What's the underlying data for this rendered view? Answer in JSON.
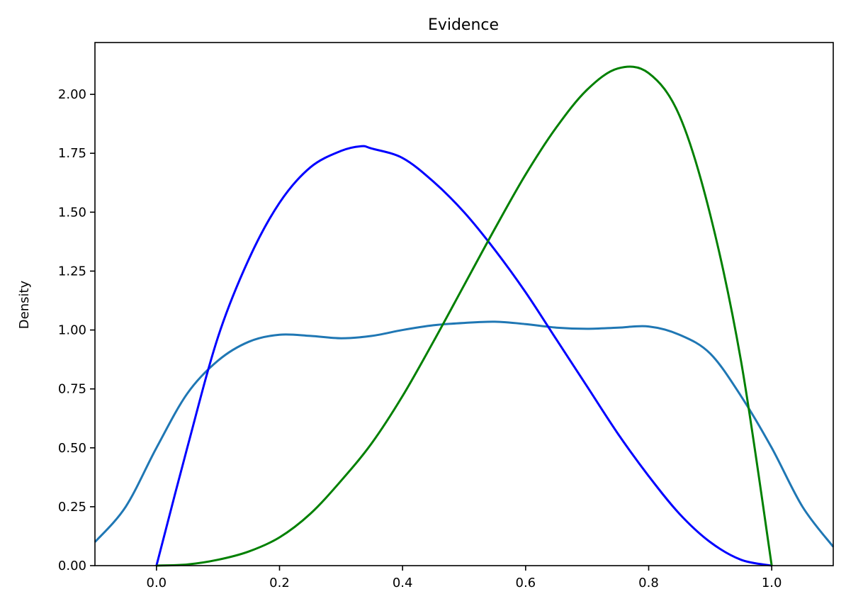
{
  "chart_data": {
    "type": "line",
    "title": "Evidence",
    "xlabel": "",
    "ylabel": "Density",
    "xlim": [
      -0.1,
      1.1
    ],
    "ylim": [
      0,
      2.22
    ],
    "xticks": [
      "0.0",
      "0.2",
      "0.4",
      "0.6",
      "0.8",
      "1.0"
    ],
    "yticks": [
      "0.00",
      "0.25",
      "0.50",
      "0.75",
      "1.00",
      "1.25",
      "1.50",
      "1.75",
      "2.00"
    ],
    "grid": false,
    "series": [
      {
        "color": "#1f77b4",
        "x": [
          -0.1,
          -0.05,
          0.0,
          0.05,
          0.1,
          0.15,
          0.2,
          0.25,
          0.3,
          0.35,
          0.4,
          0.45,
          0.5,
          0.55,
          0.6,
          0.65,
          0.7,
          0.75,
          0.8,
          0.85,
          0.9,
          0.95,
          1.0,
          1.05,
          1.1
        ],
        "y": [
          0.1,
          0.25,
          0.5,
          0.73,
          0.87,
          0.95,
          0.98,
          0.975,
          0.965,
          0.975,
          1.0,
          1.02,
          1.03,
          1.035,
          1.025,
          1.01,
          1.005,
          1.01,
          1.015,
          0.98,
          0.9,
          0.72,
          0.5,
          0.25,
          0.08
        ]
      },
      {
        "color": "#0000ff",
        "x": [
          0.0,
          0.05,
          0.1,
          0.15,
          0.2,
          0.25,
          0.3,
          0.333,
          0.35,
          0.4,
          0.45,
          0.5,
          0.55,
          0.6,
          0.65,
          0.7,
          0.75,
          0.8,
          0.85,
          0.9,
          0.95,
          1.0
        ],
        "y": [
          0.0,
          0.5,
          0.97,
          1.3,
          1.54,
          1.69,
          1.76,
          1.78,
          1.77,
          1.73,
          1.63,
          1.5,
          1.34,
          1.16,
          0.96,
          0.76,
          0.56,
          0.38,
          0.22,
          0.1,
          0.025,
          0.0
        ]
      },
      {
        "color": "#008000",
        "x": [
          0.0,
          0.05,
          0.1,
          0.15,
          0.2,
          0.25,
          0.3,
          0.35,
          0.4,
          0.45,
          0.5,
          0.55,
          0.6,
          0.65,
          0.7,
          0.75,
          0.8,
          0.85,
          0.9,
          0.95,
          1.0
        ],
        "y": [
          0.0,
          0.005,
          0.025,
          0.06,
          0.12,
          0.22,
          0.36,
          0.52,
          0.72,
          0.95,
          1.19,
          1.43,
          1.66,
          1.86,
          2.02,
          2.11,
          2.09,
          1.91,
          1.49,
          0.87,
          0.0
        ]
      }
    ]
  }
}
